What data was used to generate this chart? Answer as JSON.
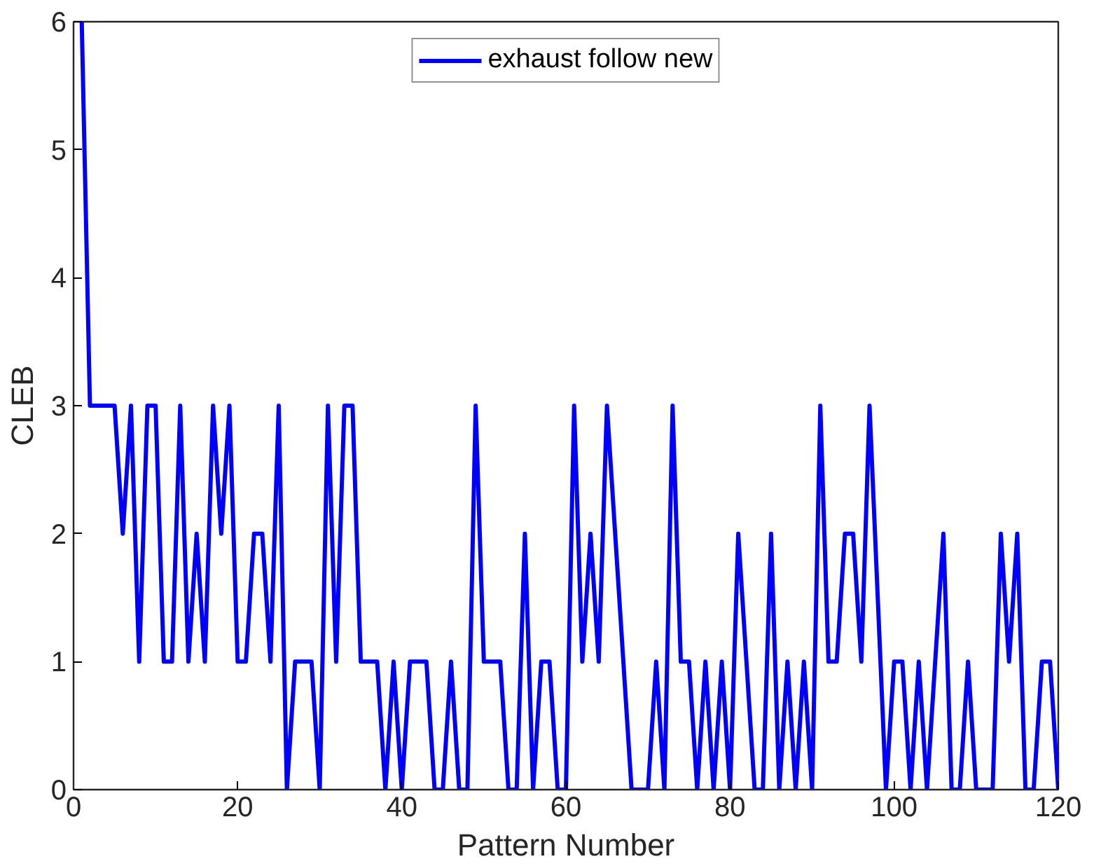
{
  "chart_data": {
    "type": "line",
    "xlabel": "Pattern Number",
    "ylabel": "CLEB",
    "x": [
      1,
      2,
      3,
      4,
      5,
      6,
      7,
      8,
      9,
      10,
      11,
      12,
      13,
      14,
      15,
      16,
      17,
      18,
      19,
      20,
      21,
      22,
      23,
      24,
      25,
      26,
      27,
      28,
      29,
      30,
      31,
      32,
      33,
      34,
      35,
      36,
      37,
      38,
      39,
      40,
      41,
      42,
      43,
      44,
      45,
      46,
      47,
      48,
      49,
      50,
      51,
      52,
      53,
      54,
      55,
      56,
      57,
      58,
      59,
      60,
      61,
      62,
      63,
      64,
      65,
      66,
      67,
      68,
      69,
      70,
      71,
      72,
      73,
      74,
      75,
      76,
      77,
      78,
      79,
      80,
      81,
      82,
      83,
      84,
      85,
      86,
      87,
      88,
      89,
      90,
      91,
      92,
      93,
      94,
      95,
      96,
      97,
      98,
      99,
      100,
      101,
      102,
      103,
      104,
      105,
      106,
      107,
      108,
      109,
      110,
      111,
      112,
      113,
      114,
      115,
      116,
      117,
      118,
      119,
      120
    ],
    "series": [
      {
        "name": "exhaust follow new",
        "color": "#0000ff",
        "values": [
          6,
          3,
          3,
          3,
          3,
          2,
          3,
          1,
          3,
          3,
          1,
          1,
          3,
          1,
          2,
          1,
          3,
          2,
          3,
          1,
          1,
          2,
          2,
          1,
          3,
          0,
          1,
          1,
          1,
          0,
          3,
          1,
          3,
          3,
          1,
          1,
          1,
          0,
          1,
          0,
          1,
          1,
          1,
          0,
          0,
          1,
          0,
          0,
          3,
          1,
          1,
          1,
          0,
          0,
          2,
          0,
          1,
          1,
          0,
          0,
          3,
          1,
          2,
          1,
          3,
          2,
          1,
          0,
          0,
          0,
          1,
          0,
          3,
          1,
          1,
          0,
          1,
          0,
          1,
          0,
          2,
          1,
          0,
          0,
          2,
          0,
          1,
          0,
          1,
          0,
          3,
          1,
          1,
          2,
          2,
          1,
          3,
          1.5,
          0,
          1,
          1,
          0,
          1,
          0,
          1,
          2,
          0,
          0,
          1,
          0,
          0,
          0,
          2,
          1,
          2,
          0,
          0,
          1,
          1,
          0
        ]
      }
    ],
    "xlim": [
      0,
      120
    ],
    "ylim": [
      0,
      6
    ],
    "xticks": [
      0,
      20,
      40,
      60,
      80,
      100,
      120
    ],
    "yticks": [
      0,
      1,
      2,
      3,
      4,
      5,
      6
    ],
    "legend": "top",
    "grid": false,
    "marker": "none",
    "line_style": "solid"
  }
}
